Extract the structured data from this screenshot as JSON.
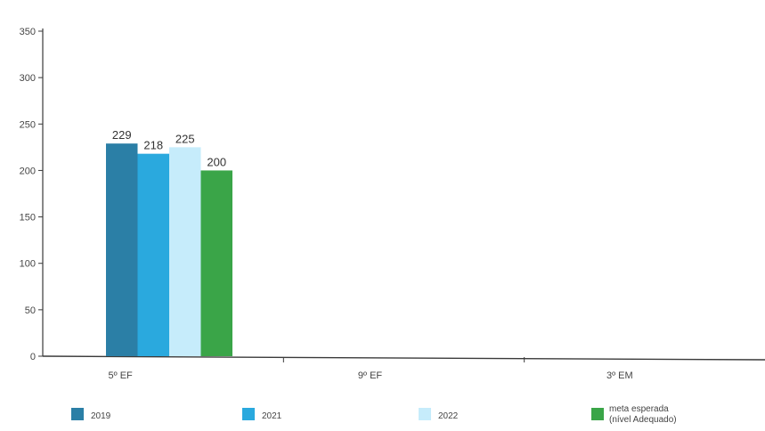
{
  "chart_data": {
    "type": "bar",
    "categories": [
      "5º EF",
      "9º EF",
      "3º EM"
    ],
    "series": [
      {
        "name": "2019",
        "values": [
          229,
          null,
          null
        ],
        "color": "#2b7fa6"
      },
      {
        "name": "2021",
        "values": [
          218,
          null,
          null
        ],
        "color": "#2aa9de"
      },
      {
        "name": "2022",
        "values": [
          225,
          null,
          null
        ],
        "color": "#c6ecfb"
      },
      {
        "name": "meta esperada (nível Adequado)",
        "values": [
          200,
          null,
          null
        ],
        "color": "#3aa548"
      }
    ],
    "value_labels": [
      "229",
      "218",
      "225",
      "200"
    ],
    "ylim": [
      0,
      350
    ],
    "yticks": [
      0,
      50,
      100,
      150,
      200,
      250,
      300,
      350
    ],
    "ytick_labels": [
      "0",
      "50",
      "100",
      "150",
      "200",
      "250",
      "300",
      "350"
    ],
    "legend": {
      "position": "bottom",
      "items": [
        {
          "label": "2019",
          "color": "#2b7fa6"
        },
        {
          "label": "2021",
          "color": "#2aa9de"
        },
        {
          "label": "2022",
          "color": "#c6ecfb"
        },
        {
          "label_lines": [
            "meta esperada",
            "(nível Adequado)"
          ],
          "color": "#3aa548"
        }
      ]
    },
    "grid": false,
    "title": "",
    "xlabel": "",
    "ylabel": ""
  }
}
